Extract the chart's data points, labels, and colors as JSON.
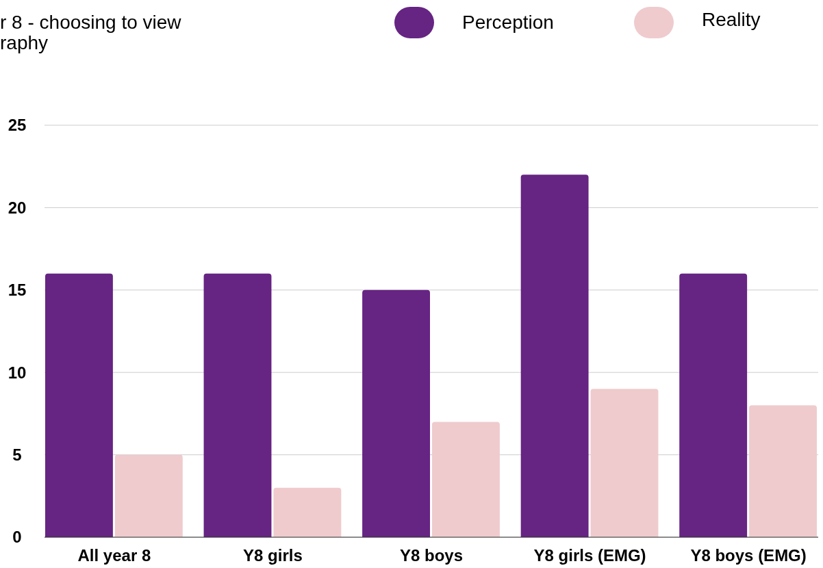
{
  "chart_data": {
    "type": "bar",
    "title": "r 8 - choosing to view\nraphy",
    "categories": [
      "All year 8",
      "Y8 girls",
      "Y8 boys",
      "Y8 girls (EMG)",
      "Y8 boys (EMG)"
    ],
    "series": [
      {
        "name": "Perception",
        "color": "#662483",
        "values": [
          16,
          16,
          15,
          22,
          16
        ]
      },
      {
        "name": "Reality",
        "color": "#efcbce",
        "values": [
          5,
          3,
          7,
          9,
          8
        ]
      }
    ],
    "ylim": [
      0,
      25
    ],
    "yticks": [
      0,
      5,
      10,
      15,
      20,
      25
    ],
    "grid": "y",
    "legend": "top right"
  }
}
